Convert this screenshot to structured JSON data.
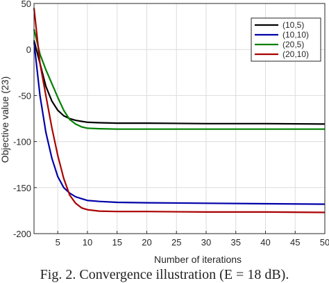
{
  "caption": "Fig. 2. Convergence illustration (E = 18 dB).",
  "chart_data": {
    "type": "line",
    "xlabel": "Number of iterations",
    "ylabel": "Objective value (23)",
    "xlim": [
      1,
      50
    ],
    "ylim": [
      -200,
      50
    ],
    "xticks": [
      5,
      10,
      15,
      20,
      25,
      30,
      35,
      40,
      45,
      50
    ],
    "yticks": [
      50,
      0,
      -50,
      -100,
      -150,
      -200
    ],
    "grid": true,
    "legend_position": "top-right",
    "series": [
      {
        "name": "(10,5)",
        "color": "#000000",
        "x": [
          1,
          2,
          3,
          4,
          5,
          6,
          7,
          8,
          9,
          10,
          12,
          15,
          20,
          30,
          40,
          50
        ],
        "y": [
          10,
          -15,
          -40,
          -56,
          -66,
          -72,
          -75,
          -77,
          -78,
          -79,
          -79.5,
          -80,
          -80,
          -80.5,
          -80.5,
          -81
        ]
      },
      {
        "name": "(10,10)",
        "color": "#0000aa",
        "x": [
          1,
          2,
          3,
          4,
          5,
          6,
          7,
          8,
          9,
          10,
          12,
          15,
          20,
          30,
          40,
          50
        ],
        "y": [
          8,
          -50,
          -90,
          -118,
          -138,
          -150,
          -156,
          -160,
          -162,
          -164,
          -165,
          -166,
          -166.5,
          -167,
          -167.5,
          -168
        ]
      },
      {
        "name": "(20,5)",
        "color": "#008000",
        "x": [
          1,
          2,
          3,
          4,
          5,
          6,
          7,
          8,
          9,
          10,
          12,
          15,
          20,
          30,
          40,
          50
        ],
        "y": [
          22,
          -5,
          -22,
          -37,
          -52,
          -66,
          -76,
          -81,
          -84,
          -85.5,
          -86,
          -86.5,
          -86.5,
          -86.5,
          -86.5,
          -86.5
        ]
      },
      {
        "name": "(20,10)",
        "color": "#aa0000",
        "x": [
          1,
          2,
          3,
          4,
          5,
          6,
          7,
          8,
          9,
          10,
          12,
          15,
          20,
          30,
          40,
          50
        ],
        "y": [
          45,
          -15,
          -50,
          -85,
          -115,
          -140,
          -158,
          -167,
          -172,
          -174,
          -175.5,
          -176,
          -176,
          -176.5,
          -176.5,
          -177
        ]
      }
    ]
  }
}
